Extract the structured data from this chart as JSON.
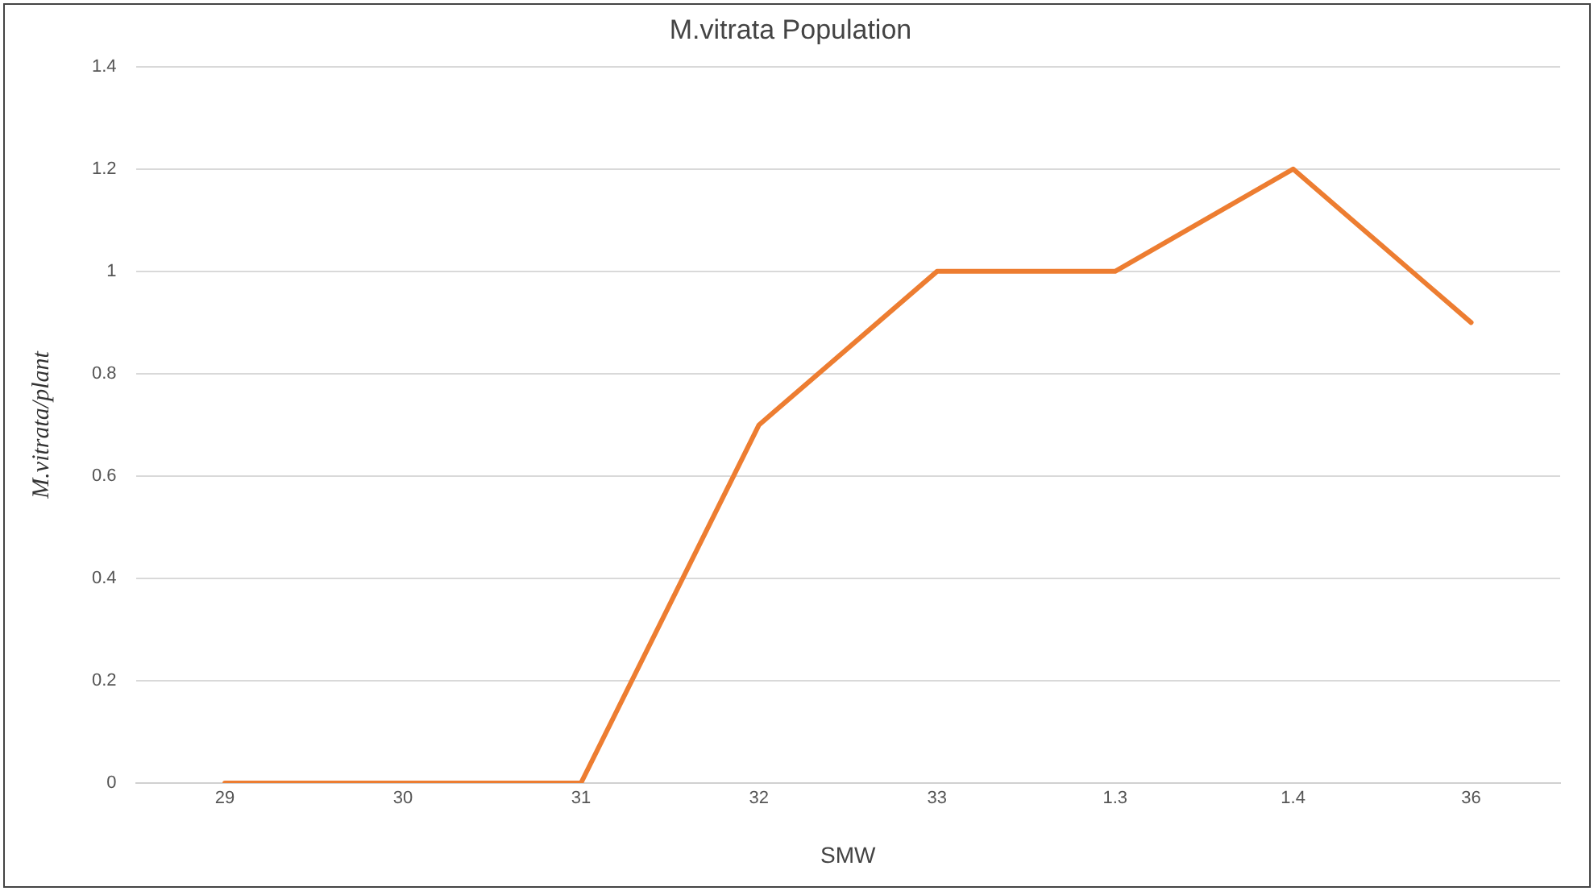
{
  "chart_data": {
    "type": "line",
    "title": "M.vitrata Population",
    "xlabel": "SMW",
    "ylabel": "M.vitrata/plant",
    "categories": [
      "29",
      "30",
      "31",
      "32",
      "33",
      "1.3",
      "1.4",
      "36"
    ],
    "series": [
      {
        "color": "#ed7d31",
        "values": [
          0,
          0,
          0,
          0.7,
          1,
          1,
          1.2,
          0.9
        ]
      }
    ],
    "ylim": [
      0,
      1.4
    ],
    "yticks": [
      0,
      0.2,
      0.4,
      0.6,
      0.8,
      1,
      1.2,
      1.4
    ],
    "grid": "y",
    "legend": false,
    "marker": "none",
    "line_style": "solid"
  }
}
